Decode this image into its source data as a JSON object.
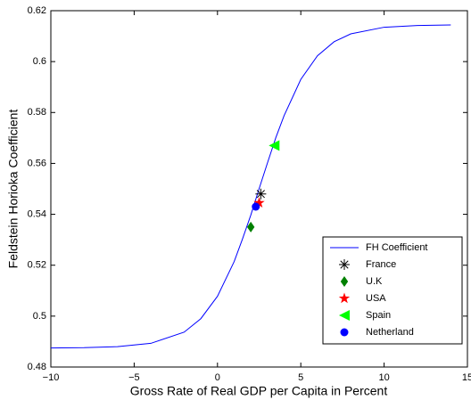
{
  "chart_data": {
    "type": "line",
    "xlabel": "Gross Rate of Real GDP per Capita in Percent",
    "ylabel": "Feldstein Horioka Coefficient",
    "xlim": [
      -10,
      15
    ],
    "ylim": [
      0.48,
      0.62
    ],
    "xticks": [
      {
        "value": -10,
        "label": "−10"
      },
      {
        "value": -5,
        "label": "−5"
      },
      0,
      5,
      10,
      15
    ],
    "yticks": [
      0.48,
      0.5,
      0.52,
      0.54,
      0.56,
      0.58,
      0.6,
      0.62
    ],
    "legend": "lower right",
    "series": [
      {
        "name": "FH Coefficient",
        "color": "#0000ff",
        "marker": "none",
        "x": [
          -10,
          -8,
          -6,
          -4,
          -2,
          -1,
          0,
          1,
          1.5,
          2,
          2.5,
          3,
          3.5,
          4,
          5,
          6,
          7,
          8,
          10,
          12,
          14
        ],
        "values": [
          0.4875,
          0.4876,
          0.488,
          0.4893,
          0.4937,
          0.499,
          0.5078,
          0.5214,
          0.5303,
          0.5397,
          0.5501,
          0.5602,
          0.5701,
          0.5788,
          0.593,
          0.6023,
          0.6078,
          0.6109,
          0.6135,
          0.6142,
          0.6144
        ]
      },
      {
        "name": "France",
        "color": "#000000",
        "marker": "asterisk",
        "x": [
          2.6
        ],
        "values": [
          0.548
        ]
      },
      {
        "name": "U.K",
        "color": "#008000",
        "marker": "diamond",
        "x": [
          2.0
        ],
        "values": [
          0.535
        ]
      },
      {
        "name": "USA",
        "color": "#ff0000",
        "marker": "star",
        "x": [
          2.5
        ],
        "values": [
          0.5445
        ]
      },
      {
        "name": "Spain",
        "color": "#00ff00",
        "marker": "triangle-left",
        "x": [
          3.4
        ],
        "values": [
          0.567
        ]
      },
      {
        "name": "Netherland",
        "color": "#0000ff",
        "marker": "circle",
        "x": [
          2.3
        ],
        "values": [
          0.543
        ]
      }
    ]
  }
}
